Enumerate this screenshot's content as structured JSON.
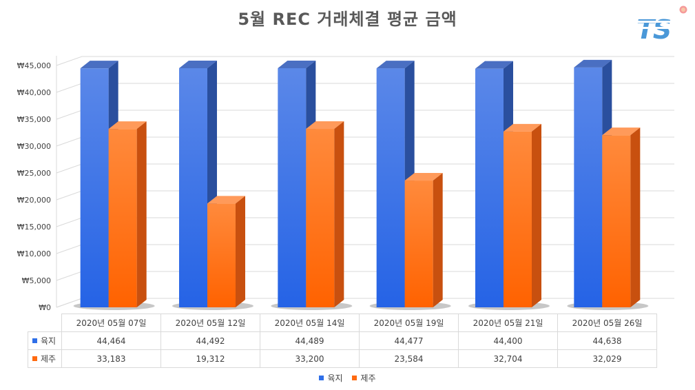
{
  "chart_data": {
    "type": "bar",
    "title": "5월 REC 거래체결 평균 금액",
    "categories": [
      "2020년 05월 07일",
      "2020년 05월 12일",
      "2020년 05월 14일",
      "2020년 05월 19일",
      "2020년 05월 21일",
      "2020년 05월 26일"
    ],
    "series": [
      {
        "name": "육지",
        "values": [
          44464,
          44492,
          44489,
          44477,
          44400,
          44638
        ],
        "display_values": [
          "44,464",
          "44,492",
          "44,489",
          "44,477",
          "44,400",
          "44,638"
        ],
        "color": "#2f6fe8"
      },
      {
        "name": "제주",
        "values": [
          33183,
          19312,
          33200,
          23584,
          32704,
          32029
        ],
        "display_values": [
          "33,183",
          "19,312",
          "33,200",
          "23,584",
          "32,704",
          "32,029"
        ],
        "color": "#ff6a10"
      }
    ],
    "y_ticks": [
      "₩0",
      "₩5,000",
      "₩10,000",
      "₩15,000",
      "₩20,000",
      "₩25,000",
      "₩30,000",
      "₩35,000",
      "₩40,000",
      "₩45,000"
    ],
    "ylim": [
      0,
      45000
    ],
    "y_step": 5000,
    "grid": true,
    "legend_position": "bottom",
    "style": "3d-column-with-data-table"
  },
  "logo": {
    "text": "TS"
  }
}
